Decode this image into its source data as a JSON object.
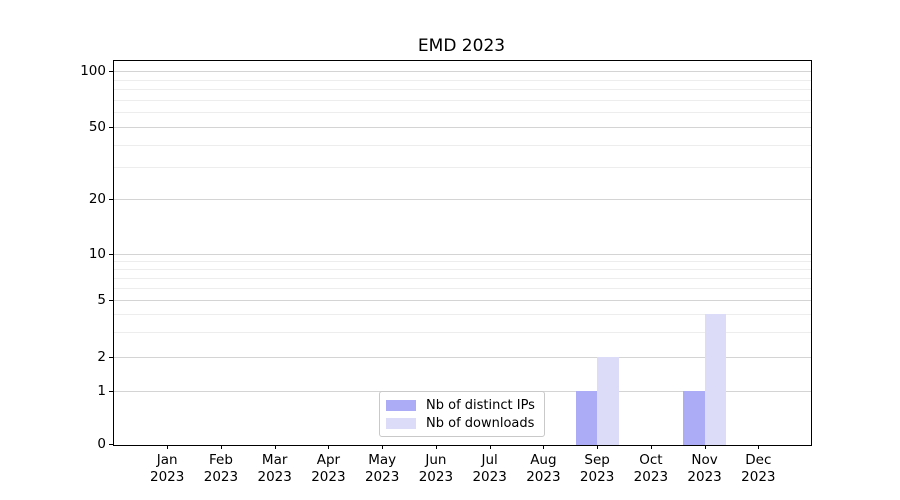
{
  "chart_data": {
    "type": "bar",
    "title": "EMD 2023",
    "yscale": "symlog",
    "ylim": [
      0,
      113
    ],
    "grid": true,
    "legend_position": "lower center",
    "y_ticks": [
      0,
      1,
      2,
      5,
      10,
      20,
      50,
      100
    ],
    "categories": [
      {
        "month": "Jan",
        "year": "2023"
      },
      {
        "month": "Feb",
        "year": "2023"
      },
      {
        "month": "Mar",
        "year": "2023"
      },
      {
        "month": "Apr",
        "year": "2023"
      },
      {
        "month": "May",
        "year": "2023"
      },
      {
        "month": "Jun",
        "year": "2023"
      },
      {
        "month": "Jul",
        "year": "2023"
      },
      {
        "month": "Aug",
        "year": "2023"
      },
      {
        "month": "Sep",
        "year": "2023"
      },
      {
        "month": "Oct",
        "year": "2023"
      },
      {
        "month": "Nov",
        "year": "2023"
      },
      {
        "month": "Dec",
        "year": "2023"
      }
    ],
    "series": [
      {
        "name": "Nb of distinct IPs",
        "color": "#acacf6",
        "values": [
          0,
          0,
          0,
          0,
          0,
          0,
          0,
          0,
          1,
          0,
          1,
          0
        ]
      },
      {
        "name": "Nb of downloads",
        "color": "#dcdcf8",
        "values": [
          0,
          0,
          0,
          0,
          0,
          0,
          0,
          0,
          2,
          0,
          4,
          0
        ]
      }
    ]
  }
}
